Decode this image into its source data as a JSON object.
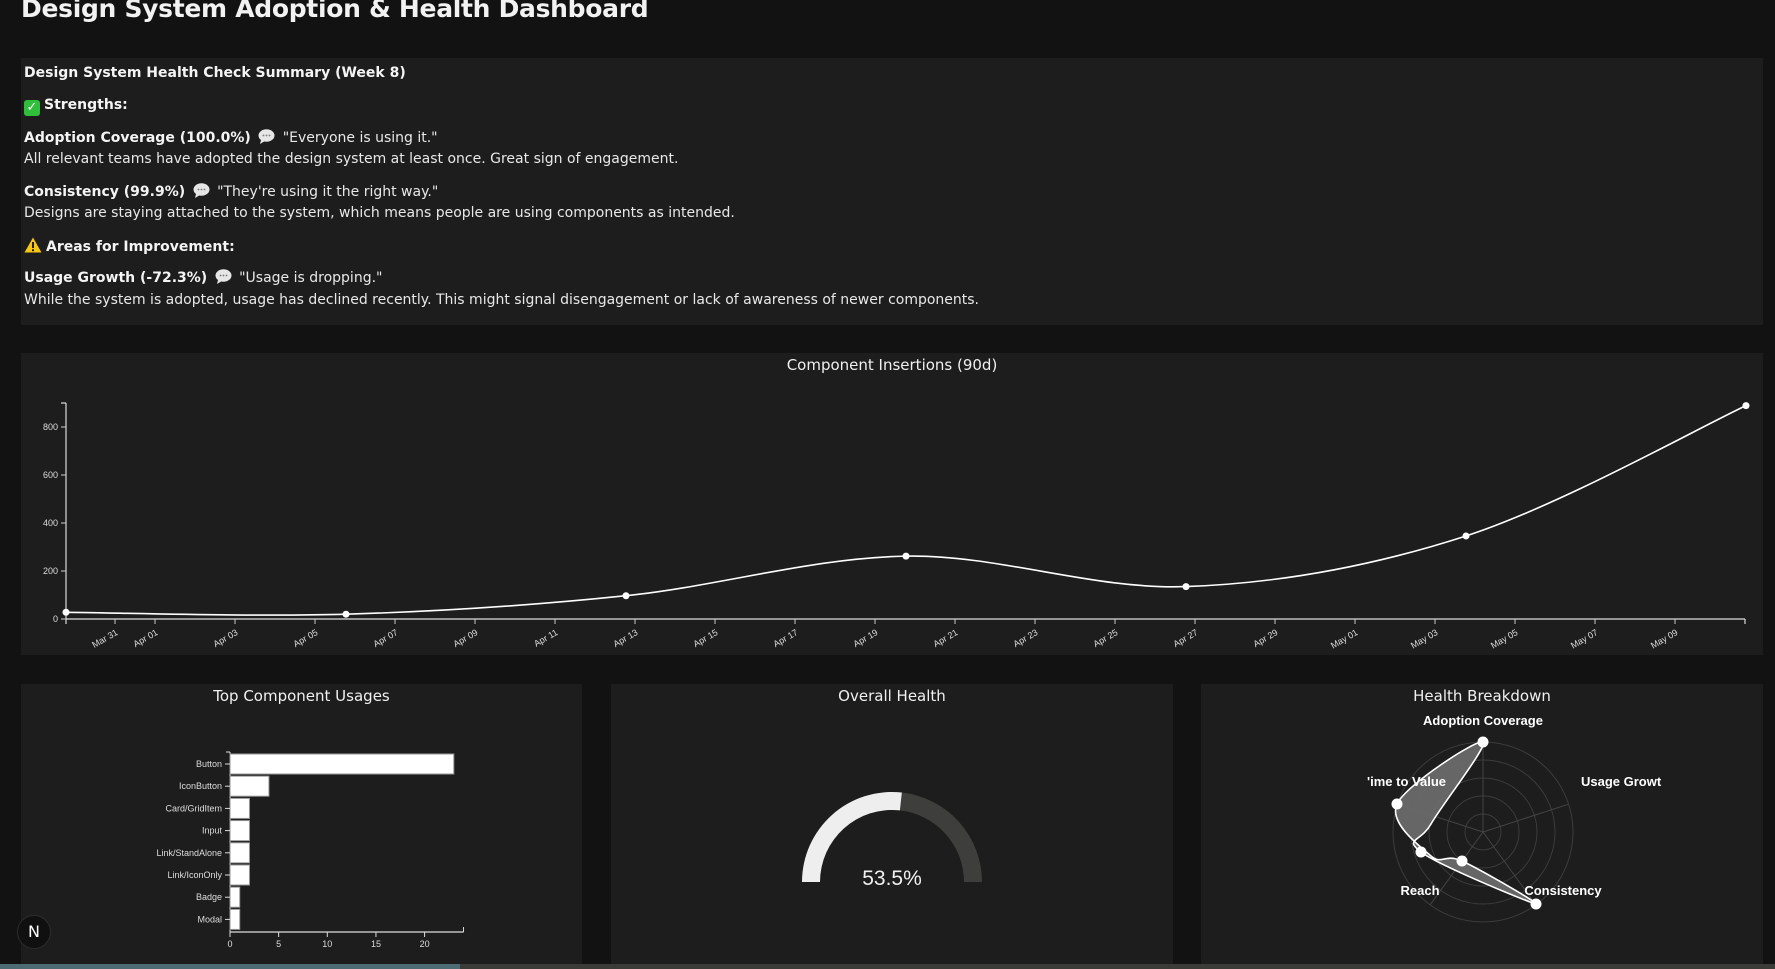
{
  "header": {
    "title": "Design System Adoption & Health Dashboard"
  },
  "summary": {
    "title": "Design System Health Check Summary (Week 8)",
    "strengths_heading": "Strengths:",
    "strengths_icon": "check-mark-icon",
    "improvement_heading": "Areas for Improvement:",
    "improvement_icon": "warning-icon",
    "items": [
      {
        "metric": "Adoption Coverage (100.0%)",
        "quote": "\"Everyone is using it.\"",
        "description": "All relevant teams have adopted the design system at least once. Great sign of engagement."
      },
      {
        "metric": "Consistency (99.9%)",
        "quote": "\"They're using it the right way.\"",
        "description": "Designs are staying attached to the system, which means people are using components as intended."
      },
      {
        "metric": "Usage Growth (-72.3%)",
        "quote": "\"Usage is dropping.\"",
        "description": "While the system is adopted, usage has declined recently. This might signal disengagement or lack of awareness of newer components."
      }
    ]
  },
  "colors": {
    "background": "#121212",
    "panel": "#1d1d1d",
    "line": "#ffffff",
    "gauge_fill": "#eeeeee",
    "gauge_track": "#3e3e3c",
    "radar_fill": "#6b6b6b",
    "scrollbar_thumb": "#4d6b73",
    "check_green": "#2fbf3a",
    "warning_yellow": "#f5c518"
  },
  "badge": {
    "label": "N"
  },
  "chart_data": [
    {
      "type": "line",
      "title": "Component Insertions (90d)",
      "xlabel": "",
      "ylabel": "",
      "x": [
        "Mar 30",
        "Apr 06",
        "Apr 13",
        "Apr 20",
        "Apr 27",
        "May 04",
        "May 11"
      ],
      "values": [
        28,
        20,
        97,
        262,
        135,
        346,
        889
      ],
      "ylim": [
        0,
        900
      ],
      "yticks": [
        "0",
        "200",
        "400",
        "600",
        "800"
      ],
      "xticks": [
        "Mar 31",
        "Apr 01",
        "Apr 03",
        "Apr 05",
        "Apr 07",
        "Apr 09",
        "Apr 11",
        "Apr 13",
        "Apr 15",
        "Apr 17",
        "Apr 19",
        "Apr 21",
        "Apr 23",
        "Apr 25",
        "Apr 27",
        "Apr 29",
        "May 01",
        "May 03",
        "May 05",
        "May 07",
        "May 09"
      ],
      "grid": false,
      "curve": "smooth"
    },
    {
      "type": "bar",
      "orientation": "horizontal",
      "title": "Top Component Usages",
      "categories": [
        "Button",
        "IconButton",
        "Card/GridItem",
        "Input",
        "Link/StandAlone",
        "Link/IconOnly",
        "Badge",
        "Modal"
      ],
      "values": [
        23,
        4,
        2,
        2,
        2,
        2,
        1,
        1
      ],
      "xlim": [
        0,
        24
      ],
      "xticks": [
        "0",
        "5",
        "10",
        "15",
        "20"
      ]
    },
    {
      "type": "gauge",
      "title": "Overall Health",
      "value": 53.5,
      "label": "53.5%",
      "range": [
        0,
        100
      ]
    },
    {
      "type": "radar",
      "title": "Health Breakdown",
      "axes": [
        "Adoption Coverage",
        "Usage Growth",
        "Consistency",
        "Reach",
        "Time to Value"
      ],
      "axis_labels_rendered": [
        "Adoption Coverage",
        "Usage Growt",
        "Consistency",
        "Reach",
        "'ime to Value"
      ],
      "values": [
        100,
        0,
        99.9,
        40,
        100
      ],
      "rlim": [
        0,
        100
      ],
      "rings": 5
    }
  ]
}
